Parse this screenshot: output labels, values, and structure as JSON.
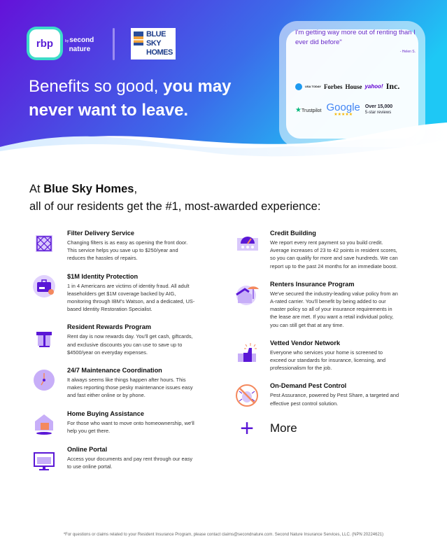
{
  "colors": {
    "brand_purple": "#5a17d6",
    "gradient_start": "#6412d9",
    "gradient_end": "#1ec8f5",
    "accent_orange": "#f4895e"
  },
  "header": {
    "logo_rbp": "rbp",
    "logo_by": "by",
    "logo_second": "second",
    "logo_nature": "nature",
    "logo_partner": [
      "BLUE",
      "SKY",
      "HOMES"
    ],
    "headline_light": "Benefits so good, ",
    "headline_bold_1": "you may",
    "headline_bold_2": "never want to leave."
  },
  "testimonial": {
    "quote": "I'm getting way more out of renting than I ever did before\"",
    "author": "- Helen S.",
    "press": [
      "USA TODAY",
      "Forbes",
      "House",
      "yahoo!",
      "Inc."
    ],
    "trustpilot": "Trustpilot",
    "google": "Google",
    "google_stars": "★★★★★",
    "reviews_count": "Over 15,000",
    "reviews_label": "5-star reviews"
  },
  "intro": {
    "prefix": "At ",
    "company": "Blue Sky Homes",
    "suffix": ",",
    "line2": "all of our residents get the #1, most-awarded experience:"
  },
  "benefits_left": [
    {
      "icon": "air-filter-icon",
      "title": "Filter Delivery Service",
      "text": "Changing filters is as easy as opening the front door. This service helps you save up to $250/year and reduces the hassles of repairs."
    },
    {
      "icon": "id-badge-icon",
      "title": "$1M Identity Protection",
      "text": "1 in 4 Americans are victims of identity fraud. All adult leaseholders get $1M coverage backed by AIG, monitoring through IBM's Watson, and a dedicated, US-based Identity Restoration Specialist."
    },
    {
      "icon": "gift-icon",
      "title": "Resident Rewards Program",
      "text": "Rent day is now rewards day. You'll get cash, giftcards, and exclusive discounts you can use to save up to $4500/year on everyday expenses."
    },
    {
      "icon": "clock-icon",
      "title": "24/7 Maintenance Coordination",
      "text": "It always seems like things happen after hours. This makes reporting those pesky maintenance issues easy and fast either online or by phone."
    },
    {
      "icon": "house-calendar-icon",
      "title": "Home Buying Assistance",
      "text": "For those who want to move onto homeownership, we'll help you get there."
    },
    {
      "icon": "monitor-icon",
      "title": "Online Portal",
      "text": "Access your documents and pay rent through our easy to use online portal."
    }
  ],
  "benefits_right": [
    {
      "icon": "credit-gauge-icon",
      "title": "Credit Building",
      "text": "We report every rent payment so you build credit. Average increases of 23 to 42 points in resident scores, so you can qualify for more and save hundreds. We can report up to the past 24 months for an immediate boost."
    },
    {
      "icon": "umbrella-house-icon",
      "title": "Renters Insurance Program",
      "text": "We've secured the industry-leading value policy from an A-rated carrier. You'll benefit by being added to our master policy so all of your insurance requirements in the lease are met. If you want a retail individual policy, you can still get that at any time."
    },
    {
      "icon": "thumbs-up-icon",
      "title": "Vetted Vendor Network",
      "text": "Everyone who services your home is screened to exceed our standards for insurance, licensing, and professionalism for the job."
    },
    {
      "icon": "no-bug-icon",
      "title": "On-Demand Pest Control",
      "text": "Pest Assurance, powered by Pest Share, a targeted and effective pest control solution."
    }
  ],
  "more": {
    "icon": "plus-icon",
    "label": "More"
  },
  "footer": "*For questions or claims related to your Resident Insurance Program, please contact claims@secondnature.com. Second Nature Insurance Services, LLC. (NPN 20224621)"
}
